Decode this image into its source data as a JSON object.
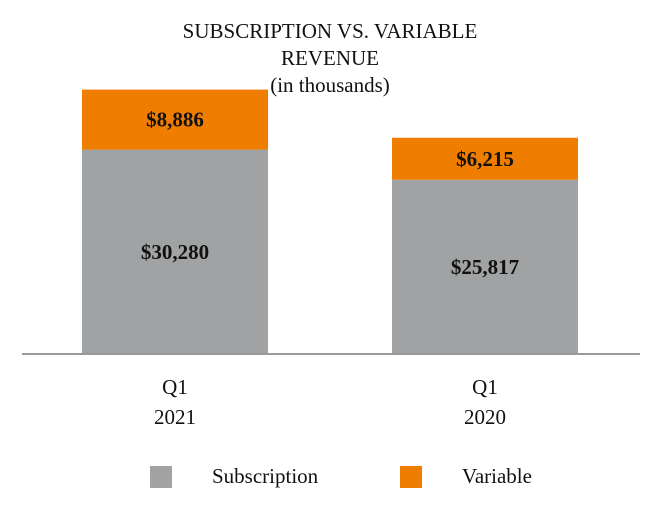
{
  "chart_data": {
    "type": "bar",
    "stacked": true,
    "title_lines": [
      "SUBSCRIPTION VS. VARIABLE",
      "REVENUE",
      "(in thousands)"
    ],
    "categories": [
      {
        "line1": "Q1",
        "line2": "2021"
      },
      {
        "line1": "Q1",
        "line2": "2020"
      }
    ],
    "series": [
      {
        "name": "Subscription",
        "color": "#a0a2a3",
        "values": [
          30280,
          25817
        ],
        "labels": [
          "$30,280",
          "$25,817"
        ]
      },
      {
        "name": "Variable",
        "color": "#ee7d00",
        "values": [
          8886,
          6215
        ],
        "labels": [
          "$8,886",
          "$6,215"
        ]
      }
    ],
    "ylim": [
      0,
      40000
    ],
    "legend_position": "bottom",
    "grid": false
  }
}
